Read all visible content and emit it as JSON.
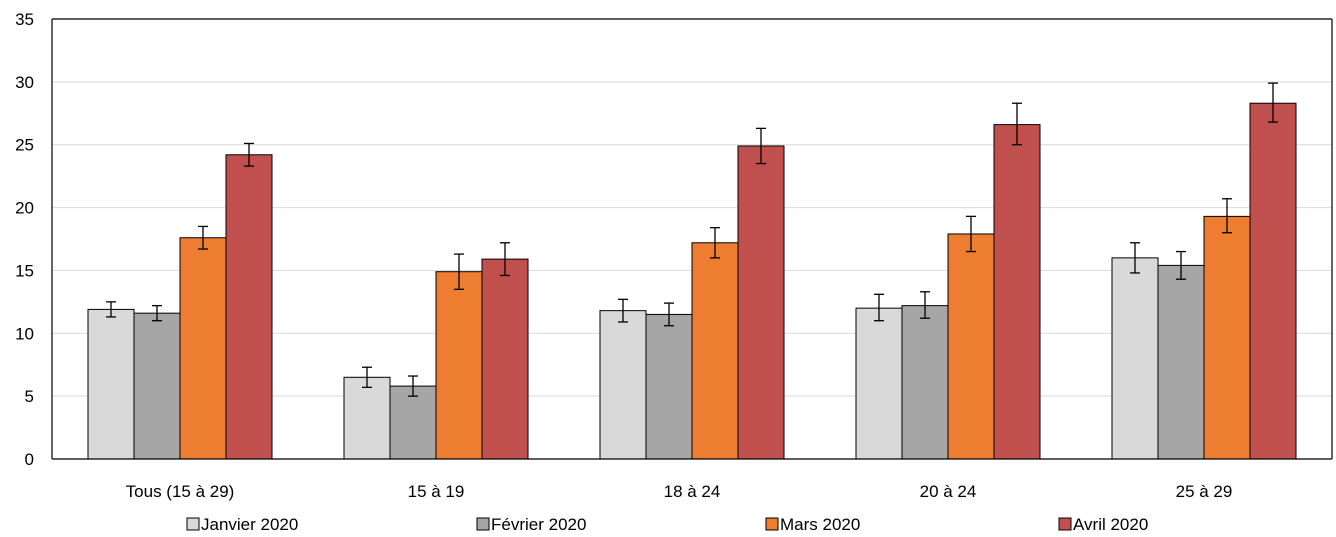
{
  "chart_data": {
    "type": "bar",
    "title": "",
    "xlabel": "",
    "ylabel": "",
    "ylim": [
      0,
      35
    ],
    "yticks": [
      "0",
      "5",
      "10",
      "15",
      "20",
      "25",
      "30",
      "35"
    ],
    "grid": true,
    "legend_position": "bottom",
    "categories": [
      "Tous (15 à 29)",
      "15 à 19",
      "18 à 24",
      "20 à 24",
      "25 à 29"
    ],
    "series": [
      {
        "name": "Janvier 2020",
        "color": "#d9d9d9",
        "values": [
          11.9,
          6.5,
          11.8,
          12.0,
          16.0
        ],
        "err_low": [
          11.3,
          5.7,
          10.9,
          11.0,
          14.8
        ],
        "err_high": [
          12.5,
          7.3,
          12.7,
          13.1,
          17.2
        ]
      },
      {
        "name": "Février 2020",
        "color": "#a6a6a6",
        "values": [
          11.6,
          5.8,
          11.5,
          12.2,
          15.4
        ],
        "err_low": [
          11.0,
          5.0,
          10.6,
          11.2,
          14.3
        ],
        "err_high": [
          12.2,
          6.6,
          12.4,
          13.3,
          16.5
        ]
      },
      {
        "name": "Mars 2020",
        "color": "#ed7d31",
        "values": [
          17.6,
          14.9,
          17.2,
          17.9,
          19.3
        ],
        "err_low": [
          16.7,
          13.5,
          16.0,
          16.5,
          18.0
        ],
        "err_high": [
          18.5,
          16.3,
          18.4,
          19.3,
          20.7
        ]
      },
      {
        "name": "Avril 2020",
        "color": "#c0504d",
        "values": [
          24.2,
          15.9,
          24.9,
          26.6,
          28.3
        ],
        "err_low": [
          23.3,
          14.6,
          23.5,
          25.0,
          26.8
        ],
        "err_high": [
          25.1,
          17.2,
          26.3,
          28.3,
          29.9
        ]
      }
    ]
  }
}
